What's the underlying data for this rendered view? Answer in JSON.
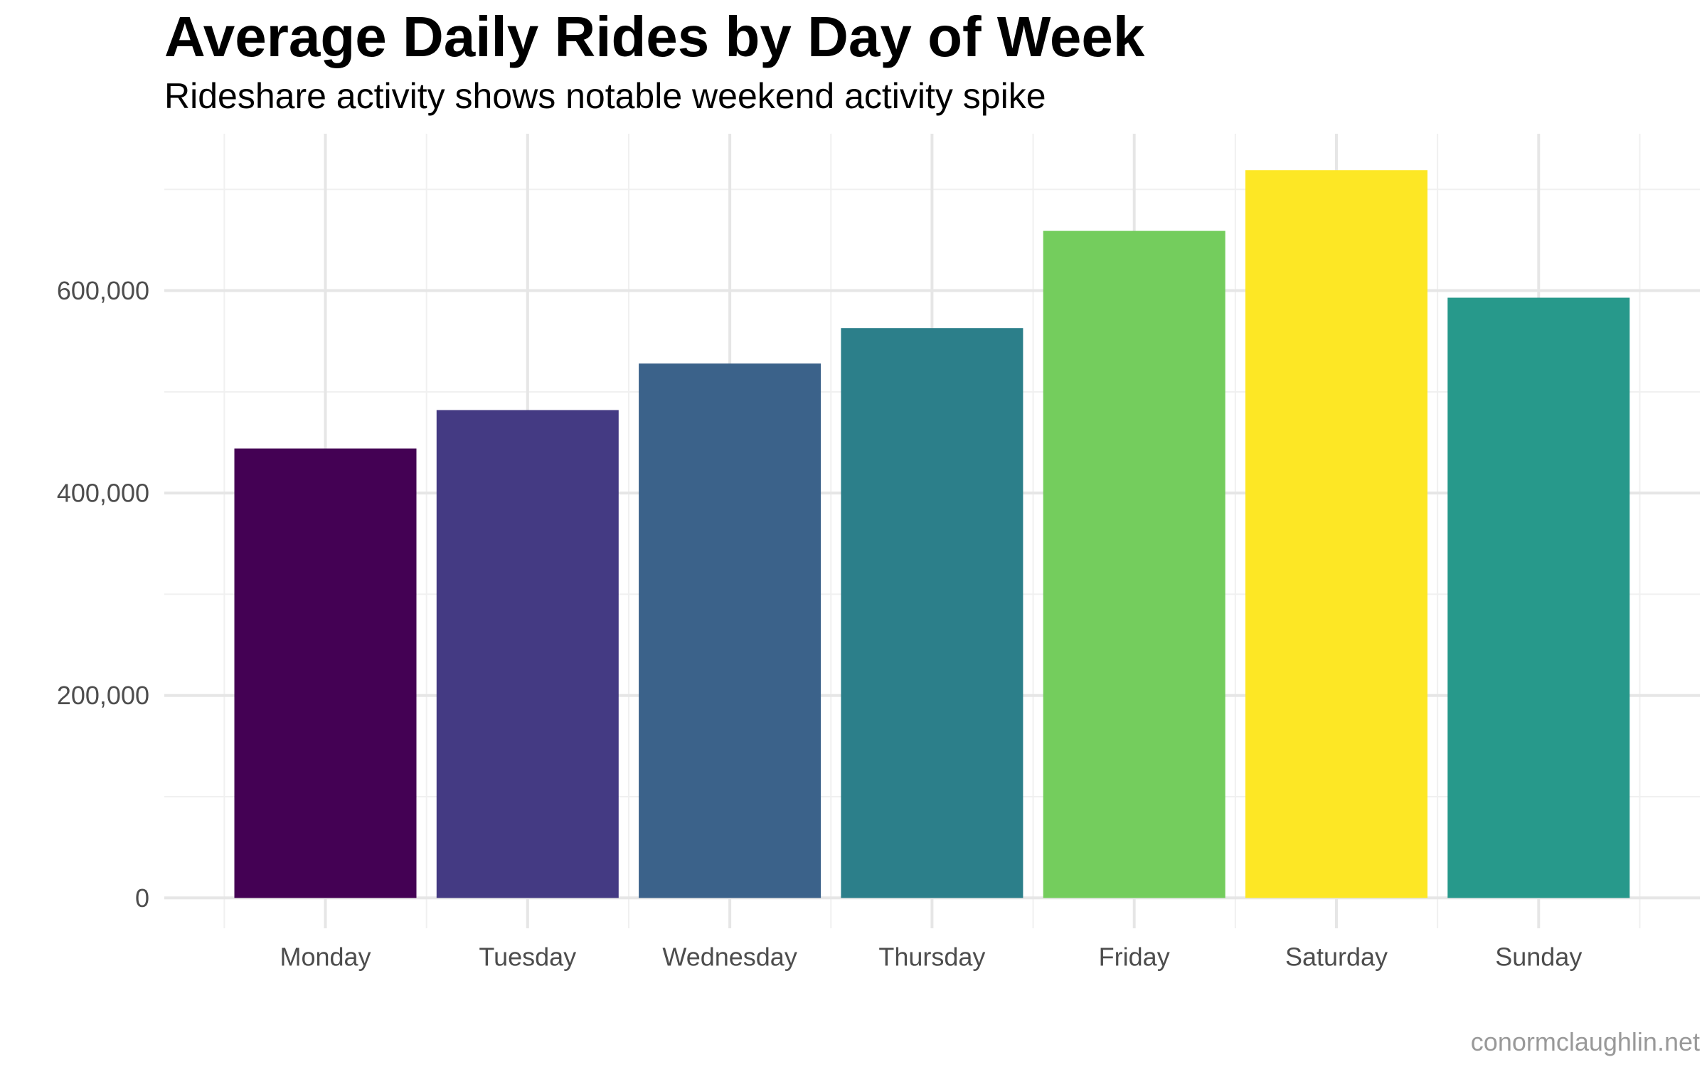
{
  "chart_data": {
    "type": "bar",
    "title": "Average Daily Rides by Day of Week",
    "subtitle": "Rideshare activity shows notable weekend activity spike",
    "caption": "conormclaughlin.net",
    "xlabel": "",
    "ylabel": "",
    "categories": [
      "Monday",
      "Tuesday",
      "Wednesday",
      "Thursday",
      "Friday",
      "Saturday",
      "Sunday"
    ],
    "values": [
      444000,
      482000,
      528000,
      563000,
      659000,
      719000,
      593000
    ],
    "colors": [
      "#440154",
      "#443A83",
      "#3B628A",
      "#2C7F8A",
      "#74CD5D",
      "#FDE725",
      "#27998B"
    ],
    "ylim": [
      -30000,
      755000
    ],
    "y_ticks": [
      0,
      200000,
      400000,
      600000
    ],
    "y_tick_labels": [
      "0",
      "200,000",
      "400,000",
      "600,000"
    ],
    "y_minor_ticks": [
      100000,
      300000,
      500000,
      700000
    ],
    "grid": true,
    "legend": "none"
  }
}
